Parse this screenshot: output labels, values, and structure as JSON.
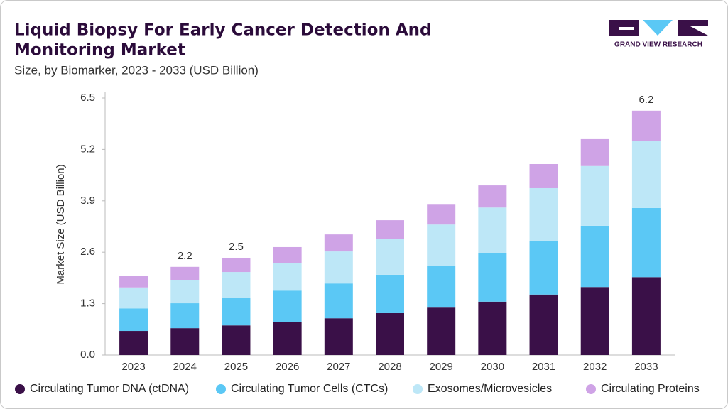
{
  "brand": "GRAND VIEW RESEARCH",
  "chart_data": {
    "type": "stacked-bar",
    "title_lines": [
      "Liquid Biopsy For Early Cancer Detection And",
      "Monitoring Market"
    ],
    "subtitle": "Size, by Biomarker, 2023 - 2033 (USD Billion)",
    "y_label": "Market Size (USD Billion)",
    "categories": [
      "2023",
      "2024",
      "2025",
      "2026",
      "2027",
      "2028",
      "2029",
      "2030",
      "2031",
      "2032",
      "2033"
    ],
    "series": [
      {
        "name": "Circulating Tumor DNA (ctDNA)",
        "color": "#3a1048",
        "values": [
          0.61,
          0.68,
          0.75,
          0.84,
          0.93,
          1.06,
          1.2,
          1.35,
          1.53,
          1.72,
          1.97
        ]
      },
      {
        "name": "Circulating Tumor Cells (CTCs)",
        "color": "#5bc8f5",
        "values": [
          0.57,
          0.63,
          0.7,
          0.79,
          0.88,
          0.97,
          1.06,
          1.22,
          1.36,
          1.55,
          1.75
        ]
      },
      {
        "name": "Exosomes/Microvesicles",
        "color": "#bde7f7",
        "values": [
          0.53,
          0.58,
          0.65,
          0.7,
          0.81,
          0.91,
          1.04,
          1.16,
          1.33,
          1.51,
          1.7
        ]
      },
      {
        "name": "Circulating Proteins",
        "color": "#cfa3e6",
        "values": [
          0.3,
          0.34,
          0.36,
          0.4,
          0.43,
          0.47,
          0.52,
          0.56,
          0.61,
          0.68,
          0.76
        ]
      }
    ],
    "totals": [
      null,
      2.2,
      2.5,
      null,
      null,
      null,
      null,
      null,
      null,
      null,
      6.2
    ],
    "ylim": [
      0,
      6.5
    ],
    "yticks": [
      {
        "value": 0,
        "label": "0.0"
      },
      1.3,
      2.6,
      3.9,
      5.2,
      6.5
    ],
    "grid": false
  }
}
